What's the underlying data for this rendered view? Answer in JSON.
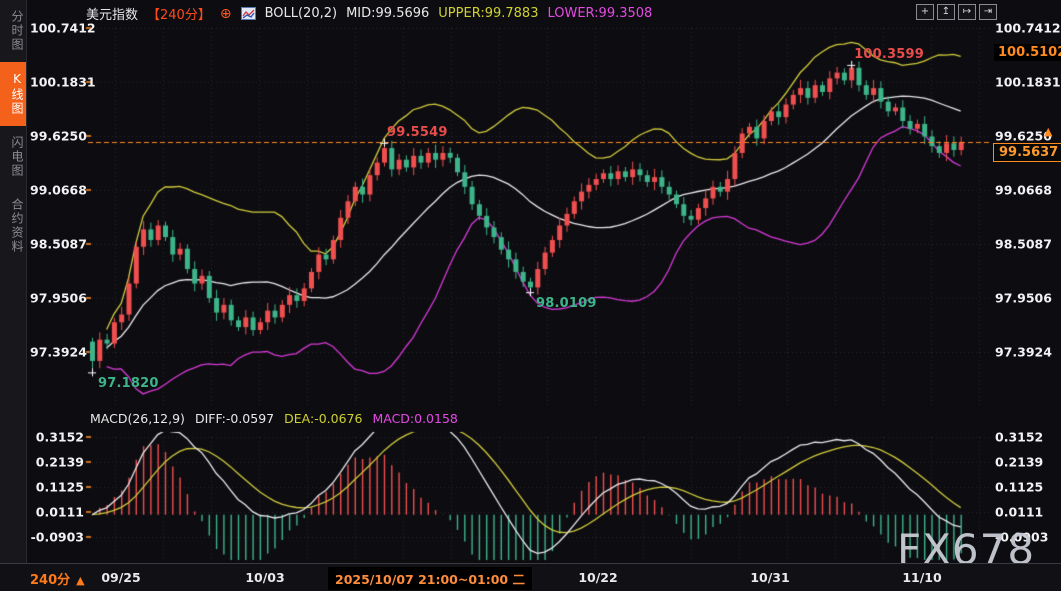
{
  "header": {
    "symbol": "美元指数",
    "timeframe": "【240分】",
    "add_icon": "⊕",
    "indicator": "BOLL(20,2)",
    "mid": "MID:99.5696",
    "upper": "UPPER:99.7883",
    "lower": "LOWER:99.3508"
  },
  "toolbar": {
    "buttons": [
      {
        "name": "crosshair",
        "glyph": "+"
      },
      {
        "name": "scale-y",
        "glyph": "↥"
      },
      {
        "name": "scale-x",
        "glyph": "↦"
      },
      {
        "name": "pan-right",
        "glyph": "⇥"
      }
    ]
  },
  "sidebar": {
    "items": [
      {
        "label": "分时图",
        "active": false
      },
      {
        "label": "K线图",
        "active": true
      },
      {
        "label": "闪电图",
        "active": false
      },
      {
        "label": "合约资料",
        "active": false
      }
    ]
  },
  "price_axis": {
    "labels": [
      "100.7412",
      "100.1831",
      "99.6250",
      "99.0668",
      "98.5087",
      "97.9506",
      "97.3924"
    ]
  },
  "macd_axis": {
    "labels": [
      "0.3152",
      "0.2139",
      "0.1125",
      "0.0111",
      "-0.0903"
    ]
  },
  "badges": {
    "upper_marker": "100.5102",
    "current_price": "99.5637",
    "arrow_icon": "▲"
  },
  "macd_header": {
    "name": "MACD(26,12,9)",
    "diff": "DIFF:-0.0597",
    "dea": "DEA:-0.0676",
    "macd": "MACD:0.0158"
  },
  "bottom": {
    "timeframe": "240分",
    "arrow": "▲",
    "dates": [
      {
        "label": "09/25"
      },
      {
        "label": "10/03"
      },
      {
        "label": "10/22"
      },
      {
        "label": "10/31"
      },
      {
        "label": "11/10"
      }
    ],
    "tooltip": "2025/10/07 21:00~01:00 二"
  },
  "watermark": "FX678",
  "chart_data": {
    "type": "candlestick",
    "title": "美元指数 240分",
    "overlays": [
      "BOLL(20,2)"
    ],
    "sub_indicator": "MACD(26,12,9)",
    "boll_values": {
      "mid": 99.5696,
      "upper": 99.7883,
      "lower": 99.3508
    },
    "macd_values": {
      "diff": -0.0597,
      "dea": -0.0676,
      "macd": 0.0158
    },
    "current_price": 99.5637,
    "upper_marker_price": 100.5102,
    "y_ticks": [
      100.7412,
      100.1831,
      99.625,
      99.0668,
      98.5087,
      97.9506,
      97.3924
    ],
    "macd_ticks": [
      0.3152,
      0.2139,
      0.1125,
      0.0111,
      -0.0903
    ],
    "x_tick_labels": [
      "09/25",
      "10/03",
      "10/22",
      "10/31",
      "11/10"
    ],
    "first_open": 97.5,
    "wick": 0.04,
    "wick_var": 0.05,
    "closes": [
      97.3,
      97.52,
      97.48,
      97.7,
      97.78,
      98.1,
      98.48,
      98.66,
      98.55,
      98.7,
      98.58,
      98.4,
      98.46,
      98.25,
      98.1,
      98.18,
      97.95,
      97.8,
      97.88,
      97.72,
      97.65,
      97.75,
      97.62,
      97.7,
      97.82,
      97.75,
      97.88,
      97.98,
      97.92,
      98.05,
      98.22,
      98.4,
      98.35,
      98.55,
      98.78,
      98.95,
      99.1,
      99.02,
      99.22,
      99.35,
      99.5,
      99.28,
      99.38,
      99.3,
      99.42,
      99.35,
      99.45,
      99.38,
      99.45,
      99.4,
      99.25,
      99.1,
      98.92,
      98.8,
      98.68,
      98.58,
      98.45,
      98.35,
      98.22,
      98.12,
      98.06,
      98.25,
      98.42,
      98.55,
      98.7,
      98.82,
      98.95,
      99.05,
      99.12,
      99.18,
      99.24,
      99.18,
      99.26,
      99.2,
      99.28,
      99.22,
      99.15,
      99.2,
      99.1,
      99.02,
      98.92,
      98.8,
      98.76,
      98.88,
      98.98,
      99.1,
      99.05,
      99.18,
      99.45,
      99.65,
      99.72,
      99.6,
      99.78,
      99.88,
      99.82,
      99.95,
      100.05,
      100.12,
      100.02,
      100.15,
      100.08,
      100.22,
      100.28,
      100.2,
      100.33,
      100.15,
      100.05,
      100.12,
      99.98,
      99.88,
      99.92,
      99.78,
      99.7,
      99.75,
      99.62,
      99.52,
      99.45,
      99.55,
      99.48,
      99.5637
    ],
    "specials": {
      "0": {
        "low": 97.182
      },
      "40": {
        "high": 99.5549
      },
      "60": {
        "low": 98.0109
      },
      "104": {
        "high": 100.3599
      }
    },
    "annotations": [
      {
        "text": "97.1820",
        "index": 0,
        "price": 97.182,
        "side": "below",
        "tone": "teal"
      },
      {
        "text": "99.5549",
        "index": 40,
        "price": 99.5549,
        "side": "above",
        "tone": "red"
      },
      {
        "text": "98.0109",
        "index": 60,
        "price": 98.0109,
        "side": "below",
        "tone": "teal"
      },
      {
        "text": "100.3599",
        "index": 104,
        "price": 100.3599,
        "side": "above",
        "tone": "red"
      }
    ],
    "colors": {
      "up": "#ef4f4f",
      "down": "#3db489",
      "boll_upper": "#d2cb3c",
      "boll_mid": "#e9e9ef",
      "boll_lower": "#d639d6",
      "current_line": "#ff8a1e",
      "grid": "#26262e",
      "macd_diff": "#e9e9ef",
      "macd_dea": "#d2cb3c",
      "hist_pos": "#ef4f4f",
      "hist_neg": "#3db489",
      "edge_tick": "#c9701e"
    },
    "macd_params": {
      "fast": 12,
      "slow": 26,
      "signal": 9
    }
  }
}
